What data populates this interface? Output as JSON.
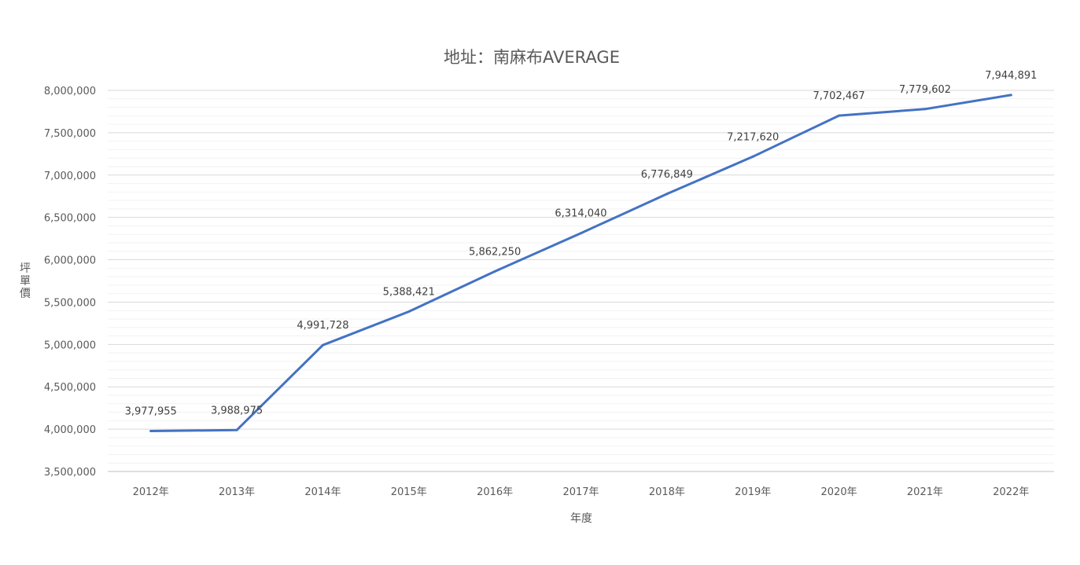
{
  "chart_data": {
    "type": "line",
    "title": "地址：南麻布AVERAGE",
    "xlabel": "年度",
    "ylabel": "坪單價",
    "categories": [
      "2012年",
      "2013年",
      "2014年",
      "2015年",
      "2016年",
      "2017年",
      "2018年",
      "2019年",
      "2020年",
      "2021年",
      "2022年"
    ],
    "series": [
      {
        "values": [
          3977955,
          3988975,
          4991728,
          5388421,
          5862250,
          6314040,
          6776849,
          7217620,
          7702467,
          7779602,
          7944891
        ],
        "labels": [
          "3,977,955",
          "3,988,975",
          "4,991,728",
          "5,388,421",
          "5,862,250",
          "6,314,040",
          "6,776,849",
          "7,217,620",
          "7,702,467",
          "7,779,602",
          "7,944,891"
        ],
        "color": "#4472C4"
      }
    ],
    "ylim": [
      3500000,
      8000000
    ],
    "yticks": [
      "3,500,000",
      "4,000,000",
      "4,500,000",
      "5,000,000",
      "5,500,000",
      "6,000,000",
      "6,500,000",
      "7,000,000",
      "7,500,000",
      "8,000,000"
    ],
    "grid": true,
    "minor_grid": true,
    "legend": "none"
  }
}
